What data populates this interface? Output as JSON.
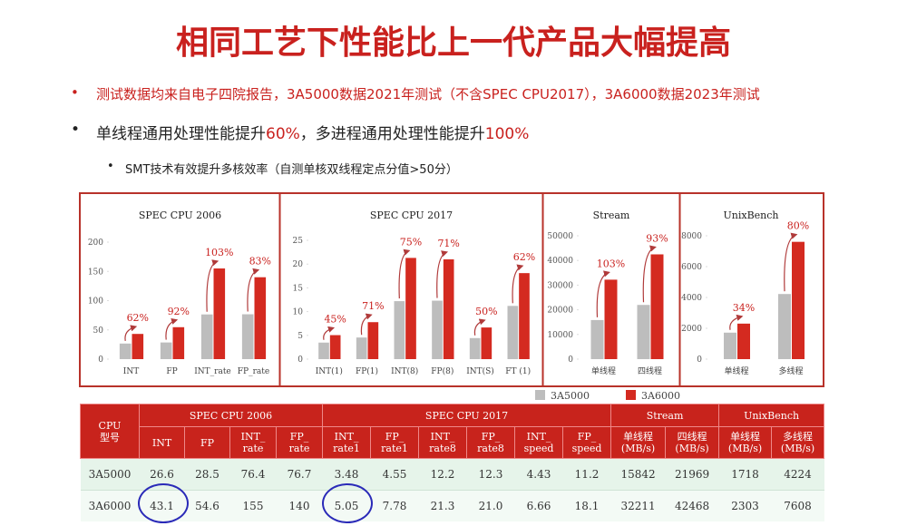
{
  "title": "相同工艺下性能比上一代产品大幅提高",
  "bullets": [
    {
      "parts": [
        "测试数据均来自电子四院报告，3A5000数据2021年测试（不含SPEC CPU2017），3A6000数据2023年测试"
      ]
    },
    {
      "parts": [
        "单线程通用处理性能提升",
        "60%",
        "，多进程通用处理性能提升",
        "100%"
      ]
    },
    {
      "parts": [
        "SMT技术有效提升多核效率（自测单核双线程定点分值>50分）"
      ]
    }
  ],
  "legend": [
    {
      "name": "3A5000",
      "color": "#bdbdbd"
    },
    {
      "name": "3A6000",
      "color": "#d42a20"
    }
  ],
  "chart_data": [
    {
      "type": "bar",
      "title": "SPEC CPU 2006",
      "categories": [
        "INT",
        "FP",
        "INT_rate",
        "FP_rate"
      ],
      "series": [
        {
          "color": "#bdbdbd",
          "values": [
            26.6,
            28.5,
            76.4,
            76.7
          ]
        },
        {
          "color": "#d42a20",
          "values": [
            43.1,
            54.6,
            155,
            140
          ]
        }
      ],
      "annotations": [
        "62%",
        "92%",
        "103%",
        "83%"
      ],
      "ylim": [
        0,
        200
      ],
      "yticks": [
        0,
        50,
        100,
        150,
        200
      ]
    },
    {
      "type": "bar",
      "title": "SPEC CPU 2017",
      "categories": [
        "INT(1)",
        "FP(1)",
        "INT(8)",
        "FP(8)",
        "INT(S)",
        "FT (1)"
      ],
      "series": [
        {
          "color": "#bdbdbd",
          "values": [
            3.48,
            4.55,
            12.2,
            12.3,
            4.43,
            11.2
          ]
        },
        {
          "color": "#d42a20",
          "values": [
            5.05,
            7.78,
            21.3,
            21.0,
            6.66,
            18.1
          ]
        }
      ],
      "annotations": [
        "45%",
        "71%",
        "75%",
        "71%",
        "50%",
        "62%"
      ],
      "ylim": [
        0,
        25
      ],
      "yticks": [
        0,
        5,
        10,
        15,
        20,
        25
      ]
    },
    {
      "type": "bar",
      "title": "Stream",
      "categories": [
        "单线程",
        "四线程"
      ],
      "series": [
        {
          "color": "#bdbdbd",
          "values": [
            15842,
            21969
          ]
        },
        {
          "color": "#d42a20",
          "values": [
            32211,
            42468
          ]
        }
      ],
      "annotations": [
        "103%",
        "93%"
      ],
      "ylim": [
        0,
        50000
      ],
      "yticks": [
        0,
        10000,
        20000,
        30000,
        40000,
        50000
      ]
    },
    {
      "type": "bar",
      "title": "UnixBench",
      "categories": [
        "单线程",
        "多线程"
      ],
      "series": [
        {
          "color": "#bdbdbd",
          "values": [
            1718,
            4224
          ]
        },
        {
          "color": "#d42a20",
          "values": [
            2303,
            7608
          ]
        }
      ],
      "annotations": [
        "34%",
        "80%"
      ],
      "ylim": [
        0,
        8000
      ],
      "yticks": [
        0,
        2000,
        4000,
        6000,
        8000
      ]
    }
  ],
  "table": {
    "corner": "CPU\n型号",
    "groups": [
      {
        "label": "SPEC CPU 2006",
        "span": 4
      },
      {
        "label": "SPEC CPU 2017",
        "span": 6
      },
      {
        "label": "Stream",
        "span": 2
      },
      {
        "label": "UnixBench",
        "span": 2
      }
    ],
    "columns": [
      "INT",
      "FP",
      "INT_\nrate",
      "FP_\nrate",
      "INT_\nrate1",
      "FP_\nrate1",
      "INT_\nrate8",
      "FP_\nrate8",
      "INT_\nspeed",
      "FP_\nspeed",
      "单线程\n(MB/s)",
      "四线程\n(MB/s)",
      "单线程\n(MB/s)",
      "多线程\n(MB/s)"
    ],
    "rows": [
      [
        "3A5000",
        "26.6",
        "28.5",
        "76.4",
        "76.7",
        "3.48",
        "4.55",
        "12.2",
        "12.3",
        "4.43",
        "11.2",
        "15842",
        "21969",
        "1718",
        "4224"
      ],
      [
        "3A6000",
        "43.1",
        "54.6",
        "155",
        "140",
        "5.05",
        "7.78",
        "21.3",
        "21.0",
        "6.66",
        "18.1",
        "32211",
        "42468",
        "2303",
        "7608"
      ]
    ]
  }
}
